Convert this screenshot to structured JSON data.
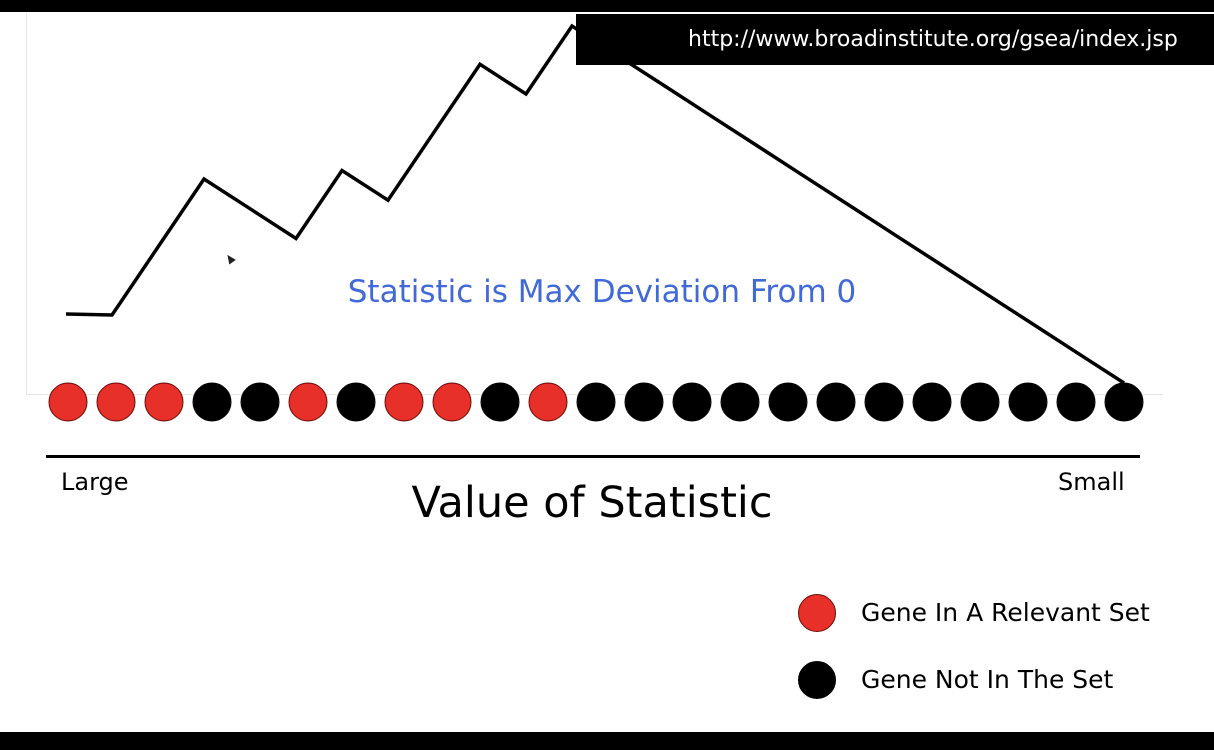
{
  "banner": {
    "url": "http://www.broadinstitute.org/gsea/index.jsp"
  },
  "caption": "Statistic is Max Deviation From 0",
  "axis": {
    "title": "Value of Statistic",
    "left_label": "Large",
    "right_label": "Small"
  },
  "legend": {
    "items": [
      {
        "label": "Gene In A Relevant Set",
        "color": "#e8302a"
      },
      {
        "label": "Gene Not In The Set",
        "color": "#000000"
      }
    ]
  },
  "colors": {
    "in_set": "#e8302a",
    "not_in_set": "#000000",
    "caption": "#4169d8"
  },
  "genes": [
    {
      "in_set": true
    },
    {
      "in_set": true
    },
    {
      "in_set": true
    },
    {
      "in_set": false
    },
    {
      "in_set": false
    },
    {
      "in_set": true
    },
    {
      "in_set": false
    },
    {
      "in_set": true
    },
    {
      "in_set": true
    },
    {
      "in_set": false
    },
    {
      "in_set": true
    },
    {
      "in_set": false
    },
    {
      "in_set": false
    },
    {
      "in_set": false
    },
    {
      "in_set": false
    },
    {
      "in_set": false
    },
    {
      "in_set": false
    },
    {
      "in_set": false
    },
    {
      "in_set": false
    },
    {
      "in_set": false
    },
    {
      "in_set": false
    },
    {
      "in_set": false
    },
    {
      "in_set": false
    }
  ]
}
